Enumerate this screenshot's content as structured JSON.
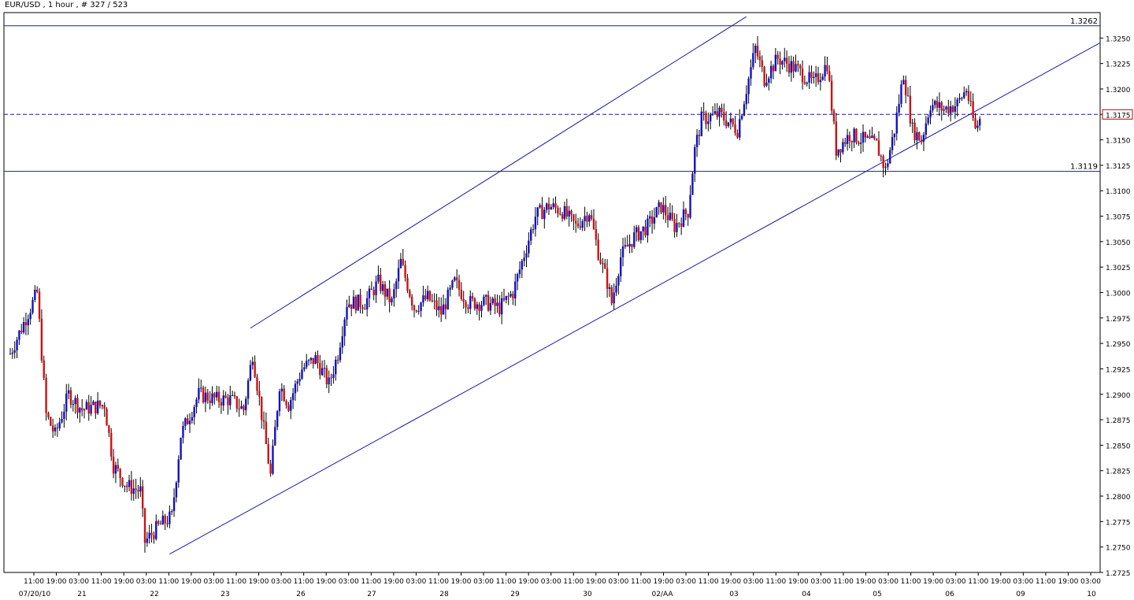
{
  "header": {
    "title": "EUR/USD , 1 hour , # 327 / 523"
  },
  "colors": {
    "up": "#1010c8",
    "down": "#d01010",
    "wick": "#000000",
    "line": "#1a1aa8",
    "frame": "#000000"
  },
  "chart_data": {
    "type": "candlestick",
    "title": "EUR/USD , 1 hour , # 327 / 523",
    "ylim": [
      1.2725,
      1.3275
    ],
    "yticks": [
      "1.3250",
      "1.3225",
      "1.3200",
      "1.3175",
      "1.3150",
      "1.3125",
      "1.3100",
      "1.3075",
      "1.3050",
      "1.3025",
      "1.3000",
      "1.2975",
      "1.2950",
      "1.2925",
      "1.2900",
      "1.2875",
      "1.2850",
      "1.2825",
      "1.2800",
      "1.2775",
      "1.2750",
      "1.2725"
    ],
    "ytick_values": [
      1.325,
      1.3225,
      1.32,
      1.3175,
      1.315,
      1.3125,
      1.31,
      1.3075,
      1.305,
      1.3025,
      1.3,
      1.2975,
      1.295,
      1.2925,
      1.29,
      1.2875,
      1.285,
      1.2825,
      1.28,
      1.2775,
      1.275,
      1.2725
    ],
    "xtick_labels": [
      "11:00",
      "19:00",
      "03:00",
      "11:00",
      "19:00",
      "03:00",
      "11:00",
      "19:00",
      "03:00",
      "11:00",
      "19:00",
      "03:00",
      "11:00",
      "19:00",
      "03:00",
      "11:00",
      "19:00",
      "03:00",
      "11:00",
      "19:00",
      "03:00",
      "11:00",
      "19:00",
      "03:00",
      "11:00",
      "19:00",
      "03:00",
      "11:00",
      "19:00",
      "03:00",
      "11:00",
      "19:00",
      "03:00",
      "11:00",
      "19:00",
      "03:00",
      "11:00",
      "19:00",
      "03:00",
      "11:00",
      "19:00",
      "03:00",
      "11:00",
      "19:00",
      "03:00",
      "11:00",
      "19:00",
      "03:00"
    ],
    "date_labels": [
      "07/20/10",
      "21",
      "22",
      "23",
      "26",
      "27",
      "28",
      "29",
      "30",
      "02/AA",
      "03",
      "04",
      "05",
      "06",
      "09",
      "10"
    ],
    "horizontal_levels": [
      {
        "value": 1.3262,
        "label": "1.3262",
        "style": "solid"
      },
      {
        "value": 1.3119,
        "label": "1.3119",
        "style": "solid"
      },
      {
        "value": 1.3175,
        "label": "1.3175",
        "style": "dashed",
        "boxed": true
      }
    ],
    "trendlines": [
      {
        "name": "channel-upper",
        "from": {
          "bar": 107,
          "price": 1.2965
        },
        "to": {
          "bar": 328,
          "price": 1.3271
        }
      },
      {
        "name": "channel-lower",
        "from": {
          "bar": 71,
          "price": 1.2743
        },
        "to": {
          "bar": 463,
          "price": 1.3218
        }
      }
    ],
    "anchors": [
      {
        "bar": 0,
        "price": 1.294
      },
      {
        "bar": 8,
        "price": 1.298
      },
      {
        "bar": 12,
        "price": 1.3
      },
      {
        "bar": 16,
        "price": 1.288
      },
      {
        "bar": 20,
        "price": 1.286
      },
      {
        "bar": 26,
        "price": 1.29
      },
      {
        "bar": 32,
        "price": 1.2885
      },
      {
        "bar": 42,
        "price": 1.289
      },
      {
        "bar": 46,
        "price": 1.283
      },
      {
        "bar": 52,
        "price": 1.281
      },
      {
        "bar": 58,
        "price": 1.2805
      },
      {
        "bar": 60,
        "price": 1.2755
      },
      {
        "bar": 66,
        "price": 1.277
      },
      {
        "bar": 72,
        "price": 1.278
      },
      {
        "bar": 76,
        "price": 1.286
      },
      {
        "bar": 84,
        "price": 1.29
      },
      {
        "bar": 92,
        "price": 1.2895
      },
      {
        "bar": 98,
        "price": 1.2895
      },
      {
        "bar": 104,
        "price": 1.2885
      },
      {
        "bar": 108,
        "price": 1.294
      },
      {
        "bar": 112,
        "price": 1.288
      },
      {
        "bar": 116,
        "price": 1.282
      },
      {
        "bar": 120,
        "price": 1.291
      },
      {
        "bar": 124,
        "price": 1.289
      },
      {
        "bar": 130,
        "price": 1.2925
      },
      {
        "bar": 136,
        "price": 1.2935
      },
      {
        "bar": 142,
        "price": 1.291
      },
      {
        "bar": 146,
        "price": 1.294
      },
      {
        "bar": 150,
        "price": 1.299
      },
      {
        "bar": 158,
        "price": 1.299
      },
      {
        "bar": 164,
        "price": 1.301
      },
      {
        "bar": 170,
        "price": 1.299
      },
      {
        "bar": 174,
        "price": 1.303
      },
      {
        "bar": 180,
        "price": 1.2985
      },
      {
        "bar": 186,
        "price": 1.2995
      },
      {
        "bar": 192,
        "price": 1.298
      },
      {
        "bar": 198,
        "price": 1.301
      },
      {
        "bar": 204,
        "price": 1.299
      },
      {
        "bar": 212,
        "price": 1.299
      },
      {
        "bar": 218,
        "price": 1.2985
      },
      {
        "bar": 224,
        "price": 1.3
      },
      {
        "bar": 228,
        "price": 1.303
      },
      {
        "bar": 234,
        "price": 1.3075
      },
      {
        "bar": 240,
        "price": 1.3085
      },
      {
        "bar": 246,
        "price": 1.308
      },
      {
        "bar": 252,
        "price": 1.3065
      },
      {
        "bar": 258,
        "price": 1.308
      },
      {
        "bar": 262,
        "price": 1.304
      },
      {
        "bar": 266,
        "price": 1.301
      },
      {
        "bar": 268,
        "price": 1.299
      },
      {
        "bar": 272,
        "price": 1.3035
      },
      {
        "bar": 278,
        "price": 1.3055
      },
      {
        "bar": 284,
        "price": 1.3065
      },
      {
        "bar": 290,
        "price": 1.3085
      },
      {
        "bar": 296,
        "price": 1.3065
      },
      {
        "bar": 302,
        "price": 1.308
      },
      {
        "bar": 305,
        "price": 1.314
      },
      {
        "bar": 308,
        "price": 1.317
      },
      {
        "bar": 316,
        "price": 1.3175
      },
      {
        "bar": 324,
        "price": 1.316
      },
      {
        "bar": 328,
        "price": 1.32
      },
      {
        "bar": 332,
        "price": 1.324
      },
      {
        "bar": 336,
        "price": 1.321
      },
      {
        "bar": 342,
        "price": 1.323
      },
      {
        "bar": 350,
        "price": 1.322
      },
      {
        "bar": 358,
        "price": 1.3205
      },
      {
        "bar": 364,
        "price": 1.3225
      },
      {
        "bar": 368,
        "price": 1.314
      },
      {
        "bar": 374,
        "price": 1.3155
      },
      {
        "bar": 380,
        "price": 1.315
      },
      {
        "bar": 386,
        "price": 1.3145
      },
      {
        "bar": 390,
        "price": 1.312
      },
      {
        "bar": 394,
        "price": 1.316
      },
      {
        "bar": 398,
        "price": 1.3215
      },
      {
        "bar": 402,
        "price": 1.316
      },
      {
        "bar": 406,
        "price": 1.315
      },
      {
        "bar": 410,
        "price": 1.3185
      },
      {
        "bar": 416,
        "price": 1.318
      },
      {
        "bar": 422,
        "price": 1.3185
      },
      {
        "bar": 426,
        "price": 1.32
      },
      {
        "bar": 430,
        "price": 1.316
      },
      {
        "bar": 432,
        "price": 1.317
      }
    ]
  }
}
